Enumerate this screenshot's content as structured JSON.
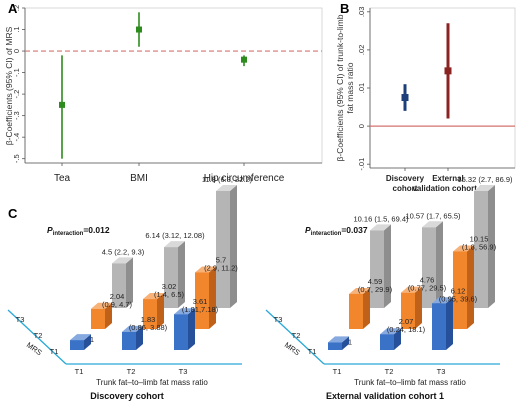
{
  "panel_labels": {
    "a": "A",
    "b": "B",
    "c": "C"
  },
  "colors": {
    "green": "#2e8b1e",
    "navy": "#1c3f7a",
    "darkred": "#8b2323",
    "refline": "#d4736f",
    "gray_front": "#b5b5b5",
    "gray_side": "#8e8e8e",
    "gray_top": "#d9d9d9",
    "orange_front": "#f2862c",
    "orange_side": "#c0611a",
    "orange_top": "#f7b27a",
    "blue_front": "#3a72c8",
    "blue_side": "#26509a",
    "blue_top": "#86a9e0",
    "floor": "#29a9d8"
  },
  "chart_data": [
    {
      "type": "scatter",
      "panel": "A",
      "ylabel": "β-Coefficients (95% CI) of MRS",
      "categories": [
        "Tea",
        "BMI",
        "Hip circumference"
      ],
      "estimates": [
        -0.25,
        0.1,
        -0.04
      ],
      "ci_low": [
        -0.5,
        0.02,
        -0.07
      ],
      "ci_high": [
        -0.02,
        0.18,
        -0.02
      ],
      "yticks": [
        ".2",
        ".1",
        "0",
        "-.1",
        "-.2",
        "-.3",
        "-.4",
        "-.5"
      ],
      "ylim": [
        -0.52,
        0.2
      ],
      "reference_line": 0,
      "grid": false
    },
    {
      "type": "scatter",
      "panel": "B",
      "ylabel_lines": [
        "β-Coefficients (95% CI) of trunk-to-limb",
        "fat mass ratio"
      ],
      "category_lines": [
        [
          "Discovery",
          "cohort"
        ],
        [
          "External",
          "validation cohort 1"
        ]
      ],
      "estimates": [
        0.0075,
        0.0145
      ],
      "ci_low": [
        0.004,
        0.002
      ],
      "ci_high": [
        0.011,
        0.027
      ],
      "yticks": [
        ".03",
        ".02",
        ".01",
        "0",
        "-.01"
      ],
      "ylim": [
        -0.011,
        0.031
      ],
      "reference_line": 0,
      "grid": false
    },
    {
      "type": "bar",
      "panel": "C",
      "subtitle": "Discovery cohort",
      "p_label": {
        "main": "P",
        "sub": "interaction",
        "value": "=0.012"
      },
      "xlabel": "Trunk fat–to–limb fat mass ratio",
      "zlabel": "MRS",
      "x_categories": [
        "T1",
        "T2",
        "T3"
      ],
      "z_categories": [
        "T1",
        "T2",
        "T3"
      ],
      "series": [
        {
          "values": [
            4.5,
            6.14,
            11.8
          ],
          "labels": [
            "4.5 (2.2, 9.3)",
            "6.14 (3.12, 12.08)",
            "11.8 (6.3, 22.2)"
          ]
        },
        {
          "values": [
            2.04,
            3.02,
            5.7
          ],
          "labels": [
            "2.04 (0.9, 4.7)",
            "3.02 (1.4, 6.5)",
            "5.7 (2.9, 11.2)"
          ]
        },
        {
          "values": [
            1,
            1.83,
            3.61
          ],
          "labels": [
            "1",
            "1.83 (0.86, 3.88)",
            "3.61 (1.81,7.18)"
          ]
        }
      ]
    },
    {
      "type": "bar",
      "panel": "C",
      "subtitle": "External validation cohort 1",
      "p_label": {
        "main": "P",
        "sub": "interaction",
        "value": "=0.037"
      },
      "xlabel": "Trunk fat–to–limb fat mass ratio",
      "zlabel": "MRS",
      "x_categories": [
        "T1",
        "T2",
        "T3"
      ],
      "z_categories": [
        "T1",
        "T2",
        "T3"
      ],
      "series": [
        {
          "values": [
            10.16,
            10.57,
            15.32
          ],
          "labels": [
            "10.16 (1.5, 69.4)",
            "10.57 (1.7, 65.5)",
            "15.32 (2.7, 86.9)"
          ]
        },
        {
          "values": [
            4.59,
            4.76,
            10.15
          ],
          "labels": [
            "4.59 (0.7, 29.9)",
            "4.76 (0.77, 29.5)",
            "10.15 (1.8, 56.9)"
          ]
        },
        {
          "values": [
            1,
            2.07,
            6.12
          ],
          "labels": [
            "1",
            "2.07 (0.24, 18.1)",
            "6.12 (0.95, 39.6)"
          ]
        }
      ]
    }
  ]
}
